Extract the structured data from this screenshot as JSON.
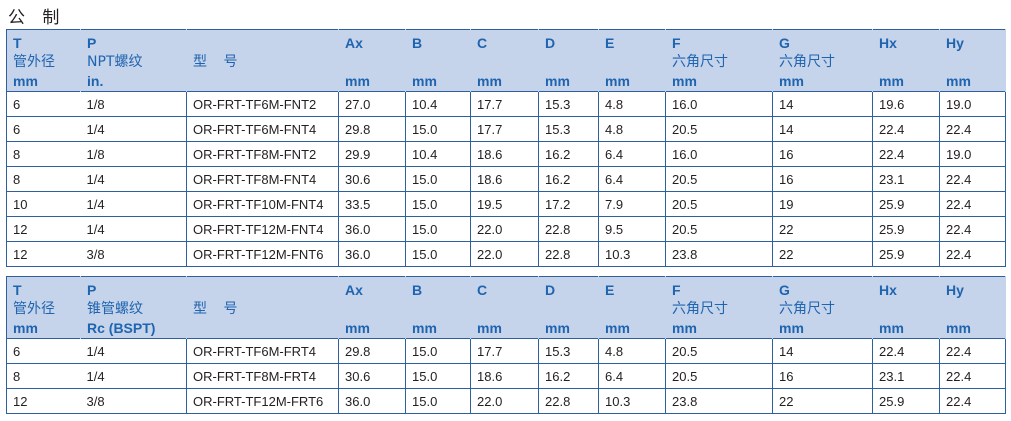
{
  "title": "公 制",
  "tables": [
    {
      "headers": [
        [
          "T",
          "管外径",
          "mm"
        ],
        [
          "P",
          "NPT螺纹",
          "in."
        ],
        [
          "",
          "型 号",
          ""
        ],
        [
          "Ax",
          "",
          "mm"
        ],
        [
          "B",
          "",
          "mm"
        ],
        [
          "C",
          "",
          "mm"
        ],
        [
          "D",
          "",
          "mm"
        ],
        [
          "E",
          "",
          "mm"
        ],
        [
          "F",
          "六角尺寸",
          "mm"
        ],
        [
          "G",
          "六角尺寸",
          "mm"
        ],
        [
          "Hx",
          "",
          "mm"
        ],
        [
          "Hy",
          "",
          "mm"
        ]
      ],
      "rows": [
        [
          "6",
          "1/8",
          "OR-FRT-TF6M-FNT2",
          "27.0",
          "10.4",
          "17.7",
          "15.3",
          "4.8",
          "16.0",
          "14",
          "19.6",
          "19.0"
        ],
        [
          "6",
          "1/4",
          "OR-FRT-TF6M-FNT4",
          "29.8",
          "15.0",
          "17.7",
          "15.3",
          "4.8",
          "20.5",
          "14",
          "22.4",
          "22.4"
        ],
        [
          "8",
          "1/8",
          "OR-FRT-TF8M-FNT2",
          "29.9",
          "10.4",
          "18.6",
          "16.2",
          "6.4",
          "16.0",
          "16",
          "22.4",
          "19.0"
        ],
        [
          "8",
          "1/4",
          "OR-FRT-TF8M-FNT4",
          "30.6",
          "15.0",
          "18.6",
          "16.2",
          "6.4",
          "20.5",
          "16",
          "23.1",
          "22.4"
        ],
        [
          "10",
          "1/4",
          "OR-FRT-TF10M-FNT4",
          "33.5",
          "15.0",
          "19.5",
          "17.2",
          "7.9",
          "20.5",
          "19",
          "25.9",
          "22.4"
        ],
        [
          "12",
          "1/4",
          "OR-FRT-TF12M-FNT4",
          "36.0",
          "15.0",
          "22.0",
          "22.8",
          "9.5",
          "20.5",
          "22",
          "25.9",
          "22.4"
        ],
        [
          "12",
          "3/8",
          "OR-FRT-TF12M-FNT6",
          "36.0",
          "15.0",
          "22.0",
          "22.8",
          "10.3",
          "23.8",
          "22",
          "25.9",
          "22.4"
        ]
      ]
    },
    {
      "headers": [
        [
          "T",
          "管外径",
          "mm"
        ],
        [
          "P",
          "锥管螺纹",
          "Rc (BSPT)"
        ],
        [
          "",
          "型 号",
          ""
        ],
        [
          "Ax",
          "",
          "mm"
        ],
        [
          "B",
          "",
          "mm"
        ],
        [
          "C",
          "",
          "mm"
        ],
        [
          "D",
          "",
          "mm"
        ],
        [
          "E",
          "",
          "mm"
        ],
        [
          "F",
          "六角尺寸",
          "mm"
        ],
        [
          "G",
          "六角尺寸",
          "mm"
        ],
        [
          "Hx",
          "",
          "mm"
        ],
        [
          "Hy",
          "",
          "mm"
        ]
      ],
      "rows": [
        [
          "6",
          "1/4",
          "OR-FRT-TF6M-FRT4",
          "29.8",
          "15.0",
          "17.7",
          "15.3",
          "4.8",
          "20.5",
          "14",
          "22.4",
          "22.4"
        ],
        [
          "8",
          "1/4",
          "OR-FRT-TF8M-FRT4",
          "30.6",
          "15.0",
          "18.6",
          "16.2",
          "6.4",
          "20.5",
          "16",
          "23.1",
          "22.4"
        ],
        [
          "12",
          "3/8",
          "OR-FRT-TF12M-FRT6",
          "36.0",
          "15.0",
          "22.0",
          "22.8",
          "10.3",
          "23.8",
          "22",
          "25.9",
          "22.4"
        ]
      ]
    }
  ]
}
